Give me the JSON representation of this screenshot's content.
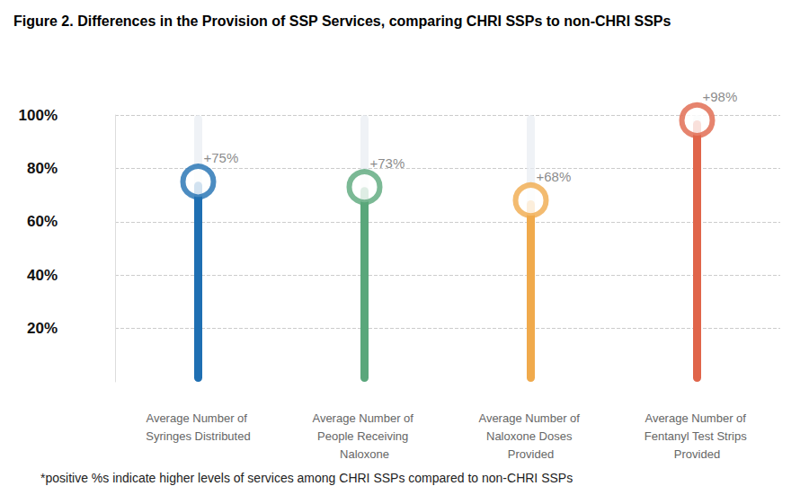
{
  "chart_data": {
    "type": "lollipop",
    "title": "Figure 2. Differences in the Provision of SSP Services, comparing CHRI SSPs to non-CHRI SSPs",
    "annotations": [
      "*positive %s indicate higher levels of services among CHRI SSPs compared to non-CHRI SSPs"
    ],
    "categories": [
      "Average Number of Syringes Distributed",
      "Average Number of People Receiving Naloxone",
      "Average Number of Naloxone Doses Provided",
      "Average Number of Fentanyl Test Strips Provided"
    ],
    "values": [
      75,
      73,
      68,
      98
    ],
    "value_labels": [
      "+75%",
      "+73%",
      "+68%",
      "+98%"
    ],
    "colors": [
      "#1f6fb2",
      "#5aa77b",
      "#f0aa4c",
      "#e0654a"
    ],
    "ylim": [
      0,
      100
    ],
    "yticks": [
      {
        "value": 20,
        "label": "20%"
      },
      {
        "value": 40,
        "label": "40%"
      },
      {
        "value": 60,
        "label": "60%"
      },
      {
        "value": 80,
        "label": "80%"
      },
      {
        "value": 100,
        "label": "100%"
      }
    ],
    "grid": true,
    "data_labels": true
  }
}
